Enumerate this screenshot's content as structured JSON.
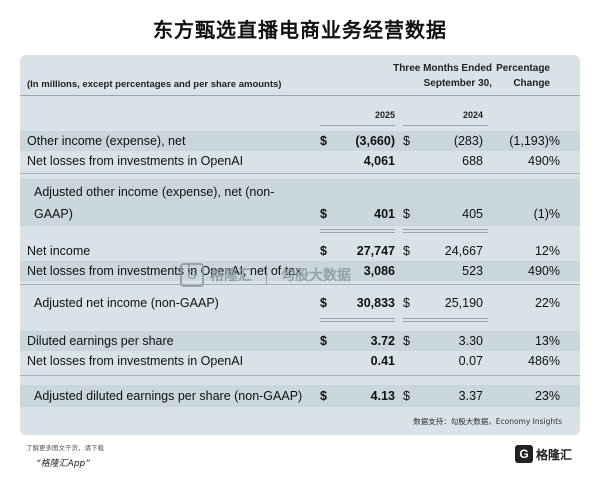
{
  "title": "东方甄选直播电商业务经营数据",
  "header": {
    "note": "(In millions, except percentages and per share amounts)",
    "period_line1": "Three Months Ended",
    "period_line2": "September 30,",
    "pct_line1": "Percentage",
    "pct_line2": "Change",
    "year1": "2025",
    "year2": "2024"
  },
  "rows": [
    {
      "label": "Other income (expense), net",
      "d1": "$",
      "v1": "(3,660)",
      "d2": "$",
      "v2": "(283)",
      "pct": "(1,193)%"
    },
    {
      "label": "Net losses from investments in OpenAI",
      "d1": "",
      "v1": "4,061",
      "d2": "",
      "v2": "688",
      "pct": "490%"
    },
    {
      "label_line1": "Adjusted other income (expense), net (non-",
      "label_line2": "GAAP)",
      "d1": "$",
      "v1": "401",
      "d2": "$",
      "v2": "405",
      "pct": "(1)%"
    },
    {
      "label": "Net income",
      "d1": "$",
      "v1": "27,747",
      "d2": "$",
      "v2": "24,667",
      "pct": "12%"
    },
    {
      "label": "Net losses from investments in OpenAI, net of tax",
      "d1": "",
      "v1": "3,086",
      "d2": "",
      "v2": "523",
      "pct": "490%"
    },
    {
      "label": "Adjusted net income (non-GAAP)",
      "d1": "$",
      "v1": "30,833",
      "d2": "$",
      "v2": "25,190",
      "pct": "22%"
    },
    {
      "label": "Diluted earnings per share",
      "d1": "$",
      "v1": "3.72",
      "d2": "$",
      "v2": "3.30",
      "pct": "13%"
    },
    {
      "label": "Net losses from investments in OpenAI",
      "d1": "",
      "v1": "0.41",
      "d2": "",
      "v2": "0.07",
      "pct": "486%"
    },
    {
      "label": "Adjusted diluted earnings per share (non-GAAP)",
      "d1": "$",
      "v1": "4.13",
      "d2": "$",
      "v2": "3.37",
      "pct": "23%"
    }
  ],
  "source": "数据支持：勾股大数据，Economy Insights",
  "watermark": {
    "mark": "G",
    "brand": "格隆汇",
    "data": "勾股大数据"
  },
  "footer": {
    "line1": "了解更多图文干货，请下载",
    "line2": "“格隆汇App”",
    "logo_mark": "G",
    "logo_text": "格隆汇"
  }
}
